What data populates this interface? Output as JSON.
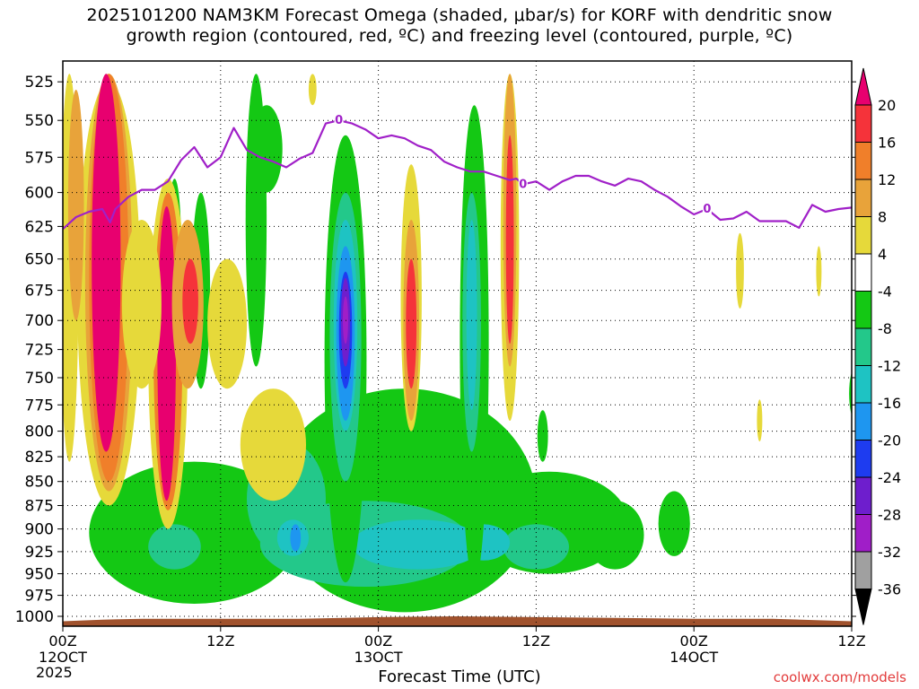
{
  "title": {
    "line1": "2025101200 NAM3KM Forecast Omega (shaded, μbar/s) for KORF with dendritic snow",
    "line2": "growth region (contoured, red, ºC) and freezing level (contoured, purple, ºC)"
  },
  "credit": "coolwx.com/models",
  "chart_data": {
    "type": "heatmap",
    "xlabel": "Forecast Time (UTC)",
    "ylabel": "",
    "x_ticks": [
      {
        "hour": 0,
        "label": "00Z",
        "sub": "12OCT",
        "sub2": "2025"
      },
      {
        "hour": 12,
        "label": "12Z",
        "sub": "",
        "sub2": ""
      },
      {
        "hour": 24,
        "label": "00Z",
        "sub": "13OCT",
        "sub2": ""
      },
      {
        "hour": 36,
        "label": "12Z",
        "sub": "",
        "sub2": ""
      },
      {
        "hour": 48,
        "label": "00Z",
        "sub": "14OCT",
        "sub2": ""
      },
      {
        "hour": 60,
        "label": "12Z",
        "sub": "",
        "sub2": ""
      }
    ],
    "xlim": [
      0,
      60
    ],
    "y_ticks": [
      525,
      550,
      575,
      600,
      625,
      650,
      675,
      700,
      725,
      750,
      775,
      800,
      825,
      850,
      875,
      900,
      925,
      950,
      975,
      1000
    ],
    "ylim": [
      1012,
      512
    ],
    "y_scale": "log-pressure",
    "grid": "dotted",
    "colorbar": {
      "levels": [
        "20",
        "16",
        "12",
        "8",
        "4",
        "-4",
        "-8",
        "-12",
        "-16",
        "-20",
        "-24",
        "-28",
        "-32",
        "-36"
      ],
      "colors": [
        "#e8006f",
        "#f5333a",
        "#f07f2a",
        "#e8a33a",
        "#e6d93a",
        "#ffffff",
        "#14c814",
        "#23c88a",
        "#1ec3c3",
        "#1e96f0",
        "#1e3cf0",
        "#6e1ecd",
        "#a01ec8",
        "#a0a0a0",
        "#000000"
      ]
    },
    "freezing_level": {
      "label": "0",
      "color": "#a020c8",
      "points": [
        [
          0,
          627
        ],
        [
          1,
          618
        ],
        [
          2,
          614
        ],
        [
          3,
          612
        ],
        [
          3.6,
          622
        ],
        [
          4,
          612
        ],
        [
          5,
          603
        ],
        [
          6,
          598
        ],
        [
          7,
          598
        ],
        [
          8,
          592
        ],
        [
          9,
          577
        ],
        [
          10,
          568
        ],
        [
          11,
          582
        ],
        [
          12,
          575
        ],
        [
          13,
          555
        ],
        [
          14,
          570
        ],
        [
          15,
          575
        ],
        [
          16,
          578
        ],
        [
          17,
          582
        ],
        [
          18,
          576
        ],
        [
          19,
          572
        ],
        [
          20,
          552
        ],
        [
          21,
          550
        ],
        [
          22,
          552
        ],
        [
          23,
          556
        ],
        [
          24,
          562
        ],
        [
          25,
          560
        ],
        [
          26,
          562
        ],
        [
          27,
          567
        ],
        [
          28,
          570
        ],
        [
          29,
          578
        ],
        [
          30,
          582
        ],
        [
          31,
          585
        ],
        [
          32,
          585
        ],
        [
          33,
          588
        ],
        [
          34,
          591
        ],
        [
          34.5,
          590
        ],
        [
          35,
          594
        ],
        [
          36,
          592
        ],
        [
          37,
          598
        ],
        [
          38,
          592
        ],
        [
          39,
          588
        ],
        [
          40,
          588
        ],
        [
          41,
          592
        ],
        [
          42,
          595
        ],
        [
          43,
          590
        ],
        [
          44,
          592
        ],
        [
          45,
          598
        ],
        [
          46,
          603
        ],
        [
          47,
          610
        ],
        [
          48,
          616
        ],
        [
          49,
          612
        ],
        [
          50,
          620
        ],
        [
          51,
          619
        ],
        [
          52,
          614
        ],
        [
          53,
          621
        ],
        [
          54,
          621
        ],
        [
          55,
          621
        ],
        [
          56,
          626
        ],
        [
          57,
          609
        ],
        [
          58,
          614
        ],
        [
          59,
          612
        ],
        [
          60,
          611
        ]
      ]
    },
    "surface_pressure": [
      [
        0,
        1006
      ],
      [
        3,
        1004
      ],
      [
        6,
        1003
      ],
      [
        18,
        1003
      ],
      [
        24,
        1001
      ],
      [
        30,
        1000
      ],
      [
        36,
        1001
      ],
      [
        42,
        1002
      ],
      [
        48,
        1003
      ],
      [
        54,
        1003
      ],
      [
        60,
        1006
      ]
    ]
  }
}
